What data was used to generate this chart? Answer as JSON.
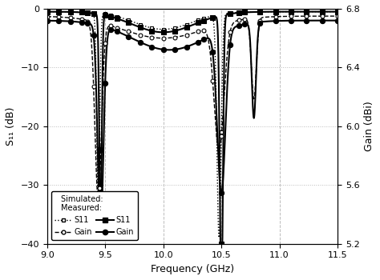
{
  "xlabel": "Frequency (GHz)",
  "ylabel_left": "S₁₁ (dB)",
  "ylabel_right": "Gain (dBi)",
  "xlim": [
    9.0,
    11.5
  ],
  "ylim_left": [
    -40,
    0
  ],
  "ylim_right": [
    5.2,
    6.8
  ],
  "xticks": [
    9.0,
    9.5,
    10.0,
    10.5,
    11.0,
    11.5
  ],
  "yticks_left": [
    0,
    -10,
    -20,
    -30,
    -40
  ],
  "yticks_right": [
    6.8,
    6.4,
    6.0,
    5.6,
    5.2
  ],
  "grid_color": "#bbbbbb",
  "background_color": "#ffffff"
}
